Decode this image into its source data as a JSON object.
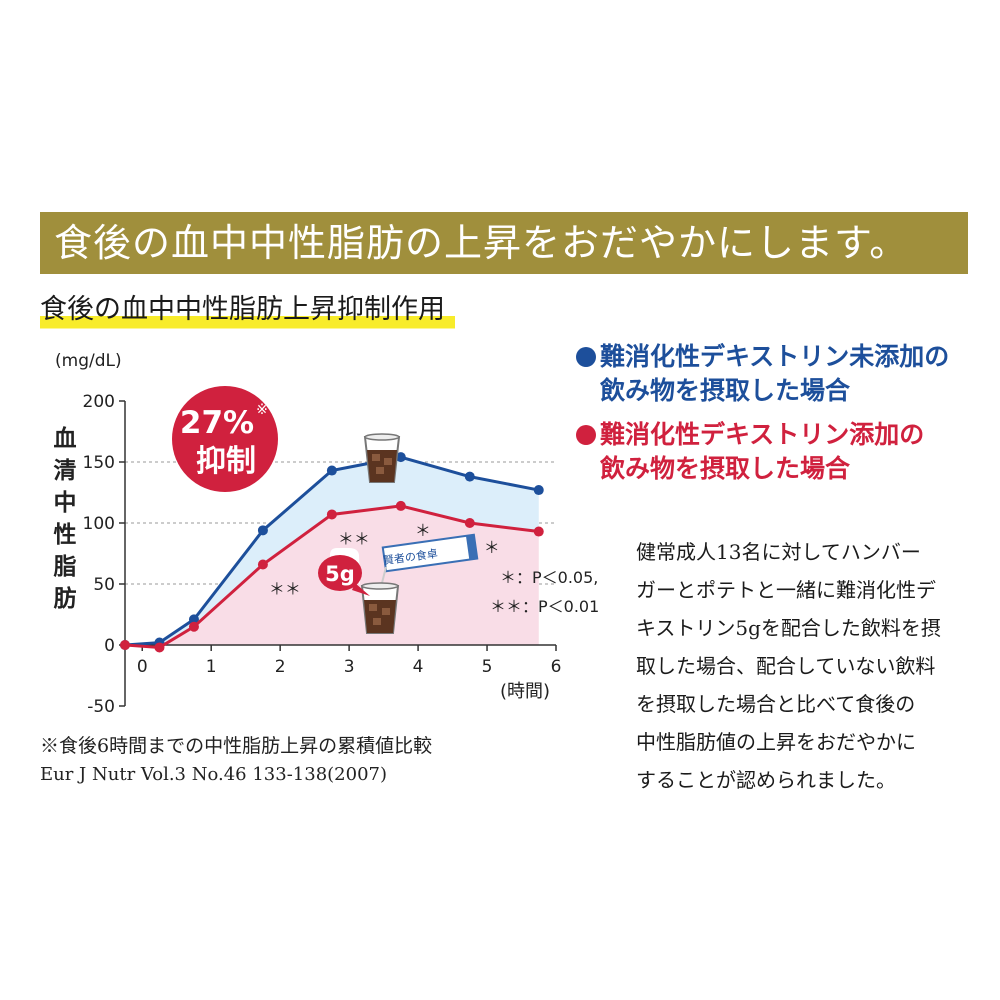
{
  "banner": {
    "text": "食後の血中中性脂肪の上昇をおだやかにします。"
  },
  "subtitle": {
    "text": "食後の血中中性脂肪上昇抑制作用"
  },
  "legend": {
    "blue_line1": "難消化性デキストリン未添加の",
    "blue_line2": "飲み物を摂取した場合",
    "red_line1": "難消化性デキストリン添加の",
    "red_line2": "飲み物を摂取した場合"
  },
  "badge": {
    "percent": "27%",
    "mark": "※",
    "word": "抑制"
  },
  "drink": {
    "dose": "5g",
    "stick_label": "賢者の食卓"
  },
  "significance": {
    "p005": "＊：P＜0.05,",
    "p001": "＊＊：P＜0.01"
  },
  "description": {
    "lines": [
      "健常成人13名に対してハンバー",
      "ガーとポテトと一緒に難消化性デ",
      "キストリン5gを配合した飲料を摂",
      "取した場合、配合していない飲料",
      "を摂取した場合と比べて食後の",
      "中性脂肪値の上昇をおだやかに",
      "することが認められました。"
    ]
  },
  "notes": {
    "note1": "※食後6時間までの中性脂肪上昇の累積値比較",
    "note2": "Eur J Nutr Vol.3 No.46 133-138(2007)"
  },
  "colors": {
    "banner": "#a08f3c",
    "blue": "#1d4f9b",
    "red": "#d0213e",
    "blue_fill": "#dceefa",
    "red_fill": "#f9dde7",
    "highlight": "#f8ec2a"
  },
  "chart_data": {
    "type": "line",
    "ylabel": "血清中性脂肪",
    "yunit": "(mg/dL)",
    "xunit": "(時間)",
    "xticks": [
      0,
      1,
      2,
      3,
      4,
      5,
      6
    ],
    "yticks": [
      -50,
      0,
      50,
      100,
      150,
      200
    ],
    "xlim": [
      -0.25,
      6
    ],
    "ylim": [
      -50,
      200
    ],
    "gridlines": [
      50,
      100,
      150
    ],
    "series": [
      {
        "color": "#1d4f9b",
        "x": [
          -0.25,
          0.25,
          0.75,
          1.75,
          2.75,
          3.75,
          4.75,
          5.75
        ],
        "y": [
          0,
          2,
          21,
          94,
          143,
          154,
          138,
          127
        ]
      },
      {
        "color": "#d0213e",
        "x": [
          -0.25,
          0.25,
          0.75,
          1.75,
          2.75,
          3.75,
          4.75,
          5.75
        ],
        "y": [
          0,
          -2,
          15,
          66,
          107,
          114,
          100,
          93
        ],
        "annotations": [
          {
            "x": 1.75,
            "text": "＊＊"
          },
          {
            "x": 2.75,
            "text": "＊＊"
          },
          {
            "x": 3.75,
            "text": "＊"
          },
          {
            "x": 4.75,
            "text": "＊"
          }
        ]
      }
    ]
  }
}
